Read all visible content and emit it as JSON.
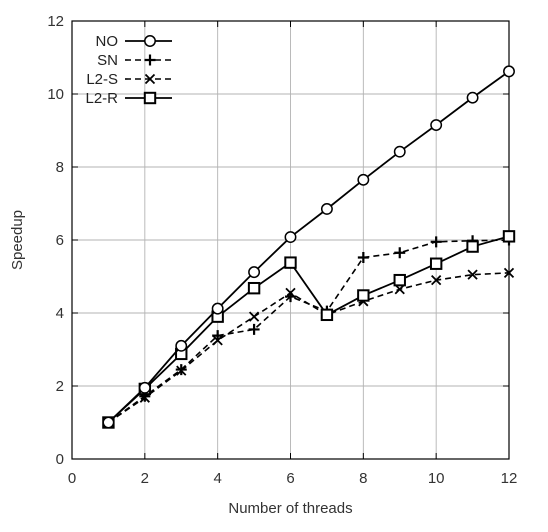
{
  "chart_data": {
    "type": "line",
    "title": "",
    "xlabel": "Number of threads",
    "ylabel": "Speedup",
    "xlim": [
      0,
      12
    ],
    "ylim": [
      0,
      12
    ],
    "xticks": [
      0,
      2,
      4,
      6,
      8,
      10,
      12
    ],
    "yticks": [
      0,
      2,
      4,
      6,
      8,
      10,
      12
    ],
    "grid": true,
    "legend_position": "top-left",
    "x": [
      1,
      2,
      3,
      4,
      5,
      6,
      7,
      8,
      9,
      10,
      11,
      12
    ],
    "series": [
      {
        "name": "NO",
        "marker": "circle",
        "line_style": "solid",
        "values": [
          1.0,
          1.95,
          3.1,
          4.12,
          5.12,
          6.08,
          6.85,
          7.65,
          8.42,
          9.15,
          9.9,
          10.62
        ]
      },
      {
        "name": "SN",
        "marker": "plus",
        "line_style": "dashed",
        "values": [
          1.0,
          1.72,
          2.45,
          3.38,
          3.55,
          4.45,
          4.05,
          5.52,
          5.65,
          5.95,
          5.98,
          6.0
        ]
      },
      {
        "name": "L2-S",
        "marker": "cross",
        "line_style": "dashed",
        "values": [
          1.0,
          1.68,
          2.42,
          3.25,
          3.9,
          4.55,
          3.95,
          4.32,
          4.65,
          4.9,
          5.05,
          5.1
        ]
      },
      {
        "name": "L2-R",
        "marker": "square",
        "line_style": "solid",
        "values": [
          1.0,
          1.92,
          2.88,
          3.9,
          4.68,
          5.38,
          3.95,
          4.48,
          4.9,
          5.35,
          5.82,
          6.1
        ]
      }
    ]
  }
}
